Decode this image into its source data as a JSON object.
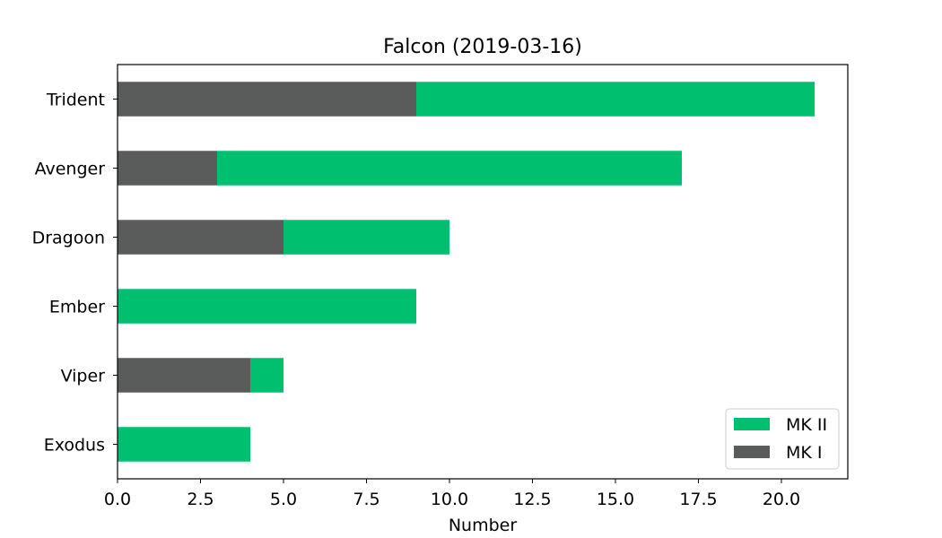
{
  "chart_data": {
    "type": "bar",
    "orientation": "horizontal",
    "stacked": true,
    "title": "Falcon (2019-03-16)",
    "xlabel": "Number",
    "ylabel": "",
    "xlim": [
      0,
      22
    ],
    "xticks": [
      "0.0",
      "2.5",
      "5.0",
      "7.5",
      "10.0",
      "12.5",
      "15.0",
      "17.5",
      "20.0"
    ],
    "categories": [
      "Trident",
      "Avenger",
      "Dragoon",
      "Ember",
      "Viper",
      "Exodus"
    ],
    "series": [
      {
        "name": "MK I",
        "color": "#5a5c5b",
        "values": [
          9,
          3,
          5,
          0,
          4,
          0
        ]
      },
      {
        "name": "MK II",
        "color": "#00bf6f",
        "values": [
          12,
          14,
          5,
          9,
          1,
          4
        ]
      }
    ],
    "legend_order": [
      "MK II",
      "MK I"
    ],
    "legend_position": "lower-right",
    "grid": false
  }
}
